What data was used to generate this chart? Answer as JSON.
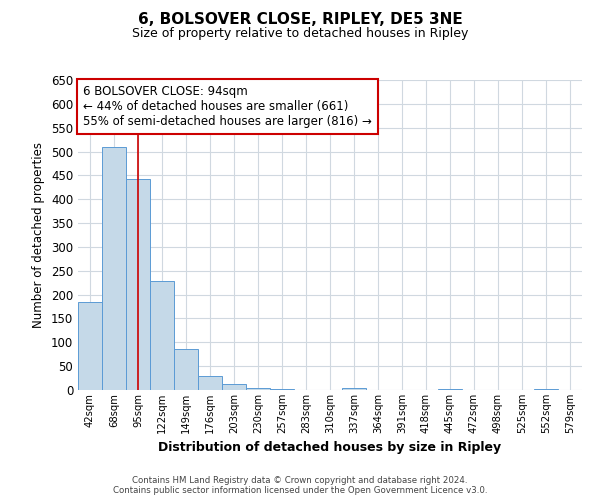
{
  "title": "6, BOLSOVER CLOSE, RIPLEY, DE5 3NE",
  "subtitle": "Size of property relative to detached houses in Ripley",
  "xlabel": "Distribution of detached houses by size in Ripley",
  "ylabel": "Number of detached properties",
  "bar_labels": [
    "42sqm",
    "68sqm",
    "95sqm",
    "122sqm",
    "149sqm",
    "176sqm",
    "203sqm",
    "230sqm",
    "257sqm",
    "283sqm",
    "310sqm",
    "337sqm",
    "364sqm",
    "391sqm",
    "418sqm",
    "445sqm",
    "472sqm",
    "498sqm",
    "525sqm",
    "552sqm",
    "579sqm"
  ],
  "bar_values": [
    185,
    510,
    443,
    228,
    85,
    29,
    13,
    5,
    2,
    0,
    0,
    5,
    0,
    0,
    0,
    2,
    0,
    0,
    0,
    2,
    0
  ],
  "bar_color": "#c5d9e8",
  "bar_edge_color": "#5b9bd5",
  "highlight_index": 2,
  "highlight_line_color": "#cc0000",
  "ylim": [
    0,
    650
  ],
  "yticks": [
    0,
    50,
    100,
    150,
    200,
    250,
    300,
    350,
    400,
    450,
    500,
    550,
    600,
    650
  ],
  "annotation_title": "6 BOLSOVER CLOSE: 94sqm",
  "annotation_line1": "← 44% of detached houses are smaller (661)",
  "annotation_line2": "55% of semi-detached houses are larger (816) →",
  "annotation_box_color": "#ffffff",
  "annotation_box_edge": "#cc0000",
  "footer_line1": "Contains HM Land Registry data © Crown copyright and database right 2024.",
  "footer_line2": "Contains public sector information licensed under the Open Government Licence v3.0.",
  "bg_color": "#ffffff",
  "grid_color": "#d0d8e0"
}
